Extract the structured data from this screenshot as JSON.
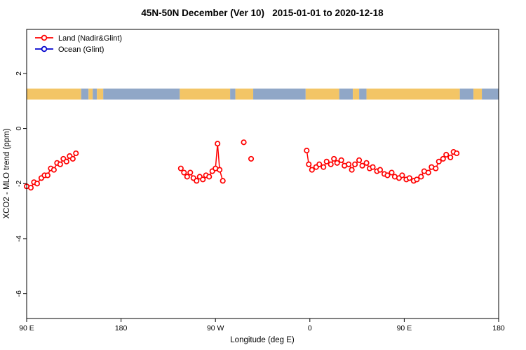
{
  "chart_data": {
    "type": "line",
    "title": "45N-50N December (Ver 10)   2015-01-01 to 2020-12-18",
    "xlabel": "Longitude (deg E)",
    "ylabel": "XCO2 - MLO trend (ppm)",
    "xlim": [
      90,
      540
    ],
    "ylim": [
      -6.9,
      3.6
    ],
    "grid": false,
    "legend_position": "top-left",
    "xticks": [
      {
        "pos": 90,
        "label": "90 E"
      },
      {
        "pos": 180,
        "label": "180"
      },
      {
        "pos": 270,
        "label": "90 W"
      },
      {
        "pos": 360,
        "label": "0"
      },
      {
        "pos": 450,
        "label": "90 E"
      },
      {
        "pos": 540,
        "label": "180"
      }
    ],
    "yticks": [
      {
        "pos": 2,
        "label": "2"
      },
      {
        "pos": 0,
        "label": "0"
      },
      {
        "pos": -2,
        "label": "-2"
      },
      {
        "pos": -4,
        "label": "-4"
      },
      {
        "pos": -6,
        "label": "-6"
      }
    ],
    "legend": [
      {
        "label": "Land (Nadir&Glint)",
        "color": "#ff0000"
      },
      {
        "label": "Ocean (Glint)",
        "color": "#0000cd"
      }
    ],
    "map_band": {
      "value_top": 1.45,
      "value_bottom": 1.05,
      "land_color": "#f3c566",
      "ocean_color": "#90a7c7",
      "segments": [
        {
          "from": 90,
          "to": 142,
          "surface": "land"
        },
        {
          "from": 142,
          "to": 149,
          "surface": "ocean"
        },
        {
          "from": 149,
          "to": 153,
          "surface": "land"
        },
        {
          "from": 153,
          "to": 157,
          "surface": "ocean"
        },
        {
          "from": 157,
          "to": 163,
          "surface": "land"
        },
        {
          "from": 163,
          "to": 236,
          "surface": "ocean"
        },
        {
          "from": 236,
          "to": 284,
          "surface": "land"
        },
        {
          "from": 284,
          "to": 289,
          "surface": "ocean"
        },
        {
          "from": 289,
          "to": 306,
          "surface": "land"
        },
        {
          "from": 306,
          "to": 356,
          "surface": "ocean"
        },
        {
          "from": 356,
          "to": 388,
          "surface": "land"
        },
        {
          "from": 388,
          "to": 401,
          "surface": "ocean"
        },
        {
          "from": 401,
          "to": 407,
          "surface": "land"
        },
        {
          "from": 407,
          "to": 414,
          "surface": "ocean"
        },
        {
          "from": 414,
          "to": 503,
          "surface": "land"
        },
        {
          "from": 503,
          "to": 516,
          "surface": "ocean"
        },
        {
          "from": 516,
          "to": 524,
          "surface": "land"
        },
        {
          "from": 524,
          "to": 540,
          "surface": "ocean"
        }
      ]
    },
    "series": [
      {
        "name": "Land (Nadir&Glint)",
        "color": "#ff0000",
        "marker": "open-circle",
        "segments": [
          [
            [
              90,
              -2.1
            ],
            [
              94,
              -2.15
            ],
            [
              97,
              -1.95
            ],
            [
              100,
              -2.0
            ],
            [
              104,
              -1.8
            ],
            [
              107,
              -1.7
            ],
            [
              110,
              -1.7
            ],
            [
              113,
              -1.45
            ],
            [
              116,
              -1.5
            ],
            [
              119,
              -1.25
            ],
            [
              122,
              -1.3
            ],
            [
              125,
              -1.1
            ],
            [
              128,
              -1.2
            ],
            [
              131,
              -1.0
            ],
            [
              134,
              -1.1
            ],
            [
              137,
              -0.9
            ]
          ],
          [
            [
              237,
              -1.45
            ],
            [
              240,
              -1.6
            ],
            [
              243,
              -1.75
            ],
            [
              246,
              -1.6
            ],
            [
              249,
              -1.8
            ],
            [
              252,
              -1.9
            ],
            [
              255,
              -1.75
            ],
            [
              258,
              -1.85
            ],
            [
              261,
              -1.7
            ],
            [
              264,
              -1.75
            ],
            [
              267,
              -1.55
            ],
            [
              270,
              -1.45
            ],
            [
              272,
              -0.55
            ],
            [
              274,
              -1.5
            ],
            [
              277,
              -1.9
            ]
          ],
          [
            [
              357,
              -0.8
            ],
            [
              359,
              -1.3
            ],
            [
              362,
              -1.5
            ],
            [
              366,
              -1.4
            ],
            [
              369,
              -1.3
            ],
            [
              373,
              -1.4
            ],
            [
              376,
              -1.2
            ],
            [
              380,
              -1.3
            ],
            [
              383,
              -1.1
            ],
            [
              386,
              -1.25
            ],
            [
              390,
              -1.15
            ],
            [
              393,
              -1.35
            ],
            [
              397,
              -1.3
            ],
            [
              400,
              -1.5
            ],
            [
              403,
              -1.3
            ],
            [
              407,
              -1.15
            ],
            [
              410,
              -1.35
            ],
            [
              414,
              -1.25
            ],
            [
              417,
              -1.45
            ],
            [
              420,
              -1.4
            ],
            [
              424,
              -1.55
            ],
            [
              427,
              -1.5
            ],
            [
              431,
              -1.65
            ],
            [
              434,
              -1.7
            ],
            [
              438,
              -1.6
            ],
            [
              441,
              -1.75
            ],
            [
              445,
              -1.8
            ],
            [
              448,
              -1.7
            ],
            [
              452,
              -1.85
            ],
            [
              455,
              -1.8
            ],
            [
              459,
              -1.9
            ],
            [
              462,
              -1.85
            ],
            [
              466,
              -1.75
            ],
            [
              469,
              -1.55
            ],
            [
              473,
              -1.6
            ],
            [
              476,
              -1.4
            ],
            [
              480,
              -1.45
            ],
            [
              483,
              -1.2
            ],
            [
              487,
              -1.1
            ],
            [
              490,
              -0.95
            ],
            [
              494,
              -1.05
            ],
            [
              497,
              -0.85
            ],
            [
              500,
              -0.9
            ]
          ]
        ],
        "isolated_points": [
          [
            297,
            -0.5
          ],
          [
            304,
            -1.1
          ]
        ]
      },
      {
        "name": "Ocean (Glint)",
        "color": "#0000cd",
        "marker": "open-circle",
        "segments": [],
        "isolated_points": []
      }
    ]
  }
}
